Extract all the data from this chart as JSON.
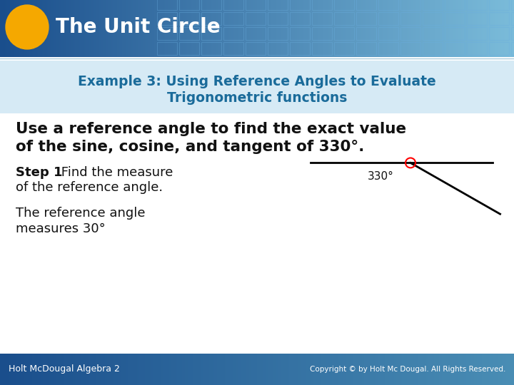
{
  "title": "The Unit Circle",
  "header_text_color": "#ffffff",
  "oval_color": "#f5a800",
  "example_line1": "Example 3: Using Reference Angles to Evaluate",
  "example_line2": "Trigonometric functions",
  "example_color": "#1a6b9a",
  "main_line1": "Use a reference angle to find the exact value",
  "main_line2": "of the sine, cosine, and tangent of 330°.",
  "step1_bold": "Step 1",
  "step1_rest": " Find the measure",
  "step1_line2": "of the reference angle.",
  "step2_line1": "The reference angle",
  "step2_line2": "measures 30°",
  "angle_label": "330°",
  "footer_text_left": "Holt McDougal Algebra 2",
  "footer_text_right": "Copyright © by Holt Mc Dougal. All Rights Reserved.",
  "body_bg": "#ffffff",
  "header_dark_blue": "#1a4e8c",
  "header_mid_blue": "#2a6db5",
  "header_light_blue": "#5aadd6",
  "footer_dark_blue": "#1a4e8c",
  "footer_mid_blue": "#2a6db5",
  "tile_edge_color": "#5599cc",
  "body_text_color": "#111111",
  "step_text_color": "#222222"
}
